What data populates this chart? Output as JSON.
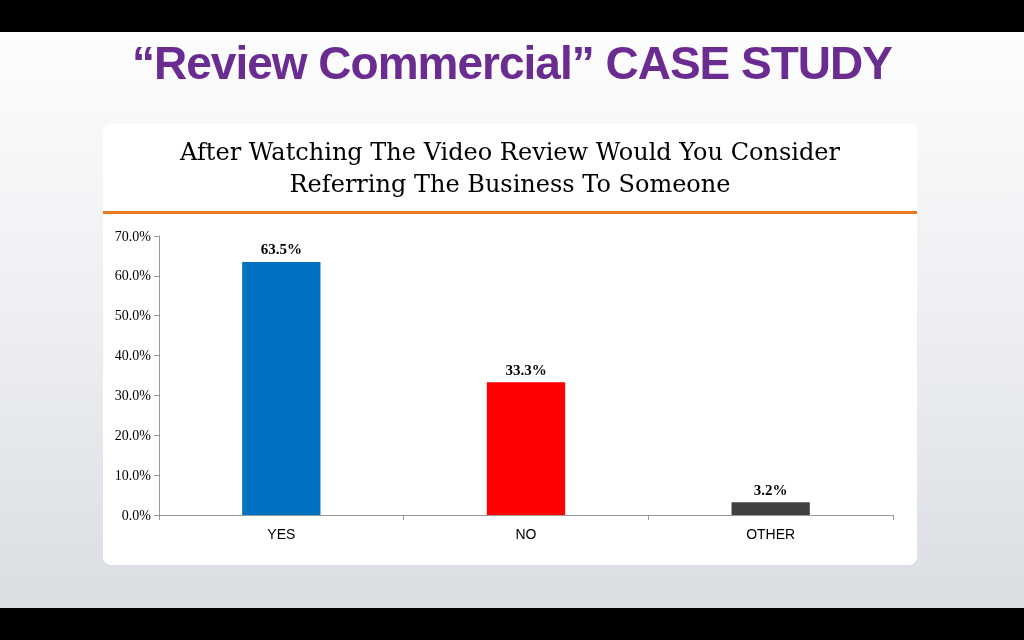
{
  "chart_data": {
    "type": "bar",
    "title": "“Review Commercial” CASE STUDY",
    "subtitle": "After Watching The Video Review Would You Consider Referring The Business To Someone",
    "categories": [
      "YES",
      "NO",
      "OTHER"
    ],
    "values": [
      63.5,
      33.3,
      3.2
    ],
    "colors": [
      "#0070c0",
      "#ff0000",
      "#404040"
    ],
    "value_labels": [
      "63.5%",
      "33.3%",
      "3.2%"
    ],
    "ylim": [
      0,
      70
    ],
    "yticks": [
      {
        "value": 0,
        "label": "0.0%"
      },
      {
        "value": 10,
        "label": "10.0%"
      },
      {
        "value": 20,
        "label": "20.0%"
      },
      {
        "value": 30,
        "label": "30.0%"
      },
      {
        "value": 40,
        "label": "40.0%"
      },
      {
        "value": 50,
        "label": "50.0%"
      },
      {
        "value": 60,
        "label": "60.0%"
      },
      {
        "value": 70,
        "label": "70.0%"
      }
    ],
    "grid": false
  }
}
